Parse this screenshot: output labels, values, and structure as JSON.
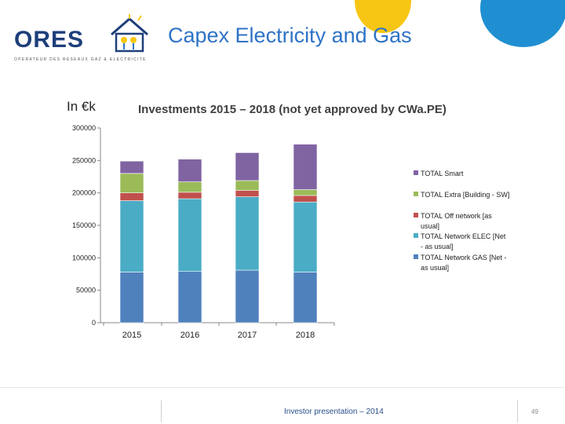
{
  "header": {
    "logo_text": "ORES",
    "logo_tagline": "OPERATEUR DES RESEAUX GAZ & ELECTRICITE",
    "title": "Capex Electricity and Gas"
  },
  "unit_label": "In €k",
  "chart_title": "Investments 2015 – 2018 (not yet approved by CWa.PE)",
  "footer": {
    "text": "Investor presentation – 2014",
    "page_number": "49"
  },
  "chart_data": {
    "type": "bar",
    "stacked": true,
    "title": "Investments 2015 – 2018 (not yet approved by CWa.PE)",
    "categories": [
      "2015",
      "2016",
      "2017",
      "2018"
    ],
    "ylim": [
      0,
      300000
    ],
    "yticks": [
      0,
      50000,
      100000,
      150000,
      200000,
      250000,
      300000
    ],
    "grid": false,
    "legend_position": "right",
    "series": [
      {
        "name": "TOTAL Network GAS [Net - as usual]",
        "color": "#4f81bd",
        "values": [
          78000,
          79000,
          81000,
          78000
        ]
      },
      {
        "name": "TOTAL Network ELEC [Net - as usual]",
        "color": "#4bacc6",
        "values": [
          110000,
          112000,
          113000,
          108000
        ]
      },
      {
        "name": "TOTAL Off network [as usual]",
        "color": "#c0504d",
        "values": [
          12000,
          10000,
          10000,
          10000
        ]
      },
      {
        "name": "TOTAL Extra [Building - SW]",
        "color": "#9bbb59",
        "values": [
          30000,
          16000,
          15000,
          9000
        ]
      },
      {
        "name": "TOTAL Smart",
        "color": "#8064a2",
        "values": [
          19000,
          35000,
          43000,
          70000
        ]
      }
    ]
  }
}
